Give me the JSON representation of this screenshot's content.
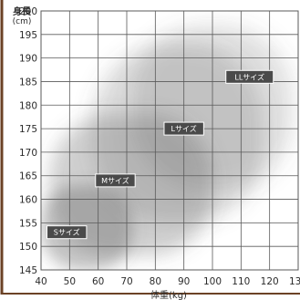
{
  "chart_data": {
    "type": "heatmap",
    "title": "",
    "xlabel": "体重(kg)",
    "ylabel_main": "身長",
    "ylabel_unit": "(cm)",
    "xlim": [
      40,
      130
    ],
    "ylim": [
      145,
      200
    ],
    "x_ticks": [
      40,
      50,
      60,
      70,
      80,
      90,
      100,
      110,
      120,
      130
    ],
    "y_ticks": [
      145,
      150,
      155,
      160,
      165,
      170,
      175,
      180,
      185,
      190,
      195,
      200
    ],
    "grid": true,
    "sizes": [
      {
        "name": "LLサイズ",
        "label_at": {
          "weight": 113,
          "height": 186
        },
        "weight_range": [
          72,
          128
        ],
        "height_range": [
          162,
          197
        ]
      },
      {
        "name": "Lサイズ",
        "label_at": {
          "weight": 90,
          "height": 175
        },
        "weight_range": [
          58,
          118
        ],
        "height_range": [
          155,
          193
        ]
      },
      {
        "name": "Mサイズ",
        "label_at": {
          "weight": 66,
          "height": 164
        },
        "weight_range": [
          43,
          100
        ],
        "height_range": [
          148,
          178
        ]
      },
      {
        "name": "Sサイズ",
        "label_at": {
          "weight": 49,
          "height": 153
        },
        "weight_range": [
          40,
          72
        ],
        "height_range": [
          145,
          163
        ]
      }
    ]
  },
  "colors": {
    "background": "#ffffff",
    "frame": "#6b4226",
    "grid": "#5a5a5a",
    "cloud": "#5f5f5f",
    "label_bg": "#4a4a4a",
    "label_text": "#ffffff"
  }
}
